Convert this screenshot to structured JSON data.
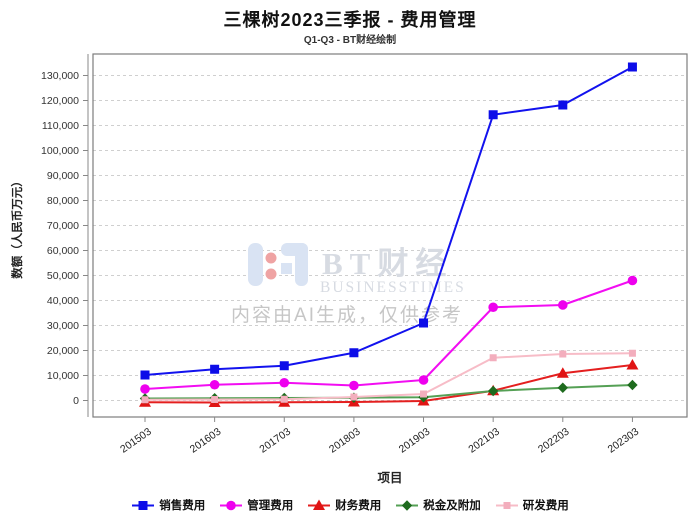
{
  "header": {
    "title": "三棵树2023三季报 - 费用管理",
    "subtitle": "Q1-Q3 - BT财经绘制"
  },
  "watermark": {
    "brand": "BT财经",
    "brand_sub": "BUSINESSTIMES",
    "disclaimer": "内容由AI生成，仅供参考",
    "logo_blue": "#d9e3f3",
    "logo_red": "#efa3a3"
  },
  "chart_data": {
    "type": "line",
    "title": "三棵树2023三季报 - 费用管理",
    "subtitle": "Q1-Q3 - BT财经绘制",
    "xlabel": "项目",
    "ylabel": "数额（人民币万元）",
    "categories": [
      "201503",
      "201603",
      "201703",
      "201803",
      "201903",
      "202103",
      "202203",
      "202303"
    ],
    "series": [
      {
        "name": "销售费用",
        "color": "#1212ee",
        "marker": "square",
        "marker_color": "#0d0de8",
        "values": [
          10200,
          12500,
          13900,
          19100,
          31000,
          114300,
          118200,
          133400
        ]
      },
      {
        "name": "管理费用",
        "color": "#f20df2",
        "marker": "circle",
        "marker_color": "#ee00ee",
        "values": [
          4600,
          6300,
          7100,
          6000,
          8200,
          37300,
          38200,
          48000
        ]
      },
      {
        "name": "财务费用",
        "color": "#e41f1f",
        "marker": "triangle",
        "marker_color": "#e01414",
        "values": [
          -700,
          -800,
          -700,
          -600,
          -200,
          3900,
          10900,
          14200
        ]
      },
      {
        "name": "税金及附加",
        "color": "#55a055",
        "marker": "diamond",
        "marker_color": "#1e6b1e",
        "values": [
          800,
          900,
          1000,
          1100,
          1300,
          3800,
          5100,
          6200
        ]
      },
      {
        "name": "研发费用",
        "color": "#f7bcc7",
        "marker": "square-small",
        "marker_color": "#f3aebd",
        "values": [
          300,
          400,
          500,
          1400,
          2600,
          17100,
          18600,
          18900
        ]
      }
    ],
    "ylim": [
      0,
      130000
    ],
    "ytick_step": 10000,
    "grid": true,
    "grid_style": "dashed",
    "legend_position": "bottom"
  }
}
